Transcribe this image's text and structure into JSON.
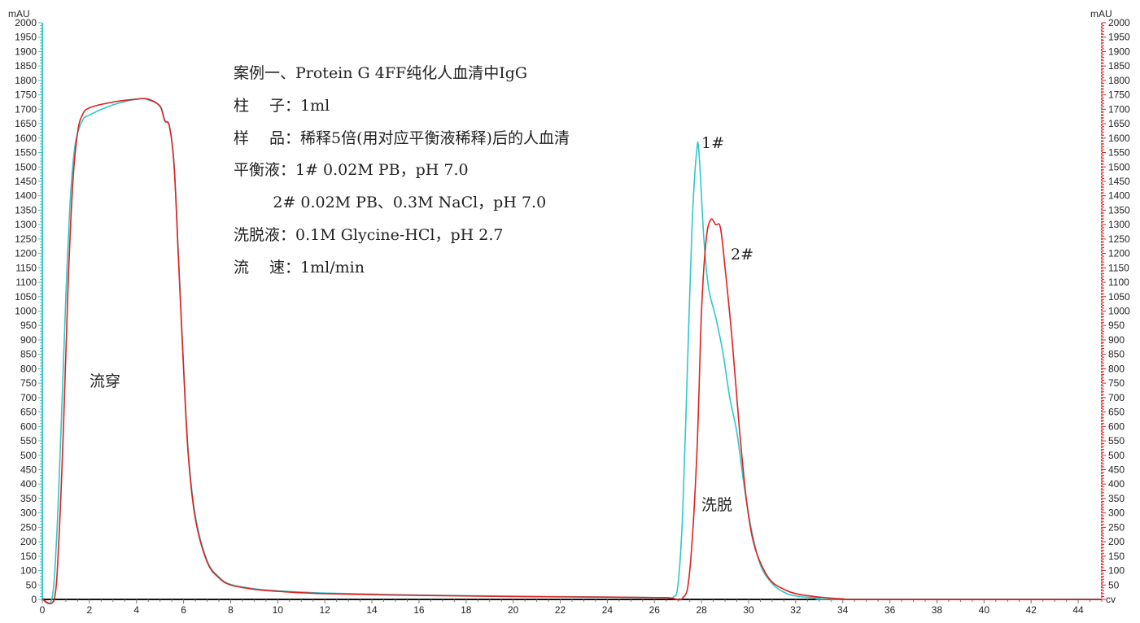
{
  "chart_data": {
    "type": "line",
    "xlabel": "cv",
    "ylabel_left": "mAU",
    "ylabel_right": "mAU",
    "xlim": [
      0,
      45
    ],
    "ylim": [
      0,
      2000
    ],
    "x_ticks": [
      0,
      2,
      4,
      6,
      8,
      10,
      12,
      14,
      16,
      18,
      20,
      22,
      24,
      26,
      28,
      30,
      32,
      34,
      36,
      38,
      40,
      42,
      44
    ],
    "y_ticks_left": [
      0,
      50,
      100,
      150,
      200,
      250,
      300,
      350,
      400,
      450,
      500,
      550,
      600,
      650,
      700,
      750,
      800,
      850,
      900,
      950,
      1000,
      1050,
      1100,
      1150,
      1200,
      1250,
      1300,
      1350,
      1400,
      1450,
      1500,
      1550,
      1600,
      1650,
      1700,
      1750,
      1800,
      1850,
      1900,
      1950,
      2000
    ],
    "y_ticks_right": [
      50,
      100,
      150,
      200,
      250,
      300,
      350,
      400,
      450,
      500,
      550,
      600,
      650,
      700,
      750,
      800,
      850,
      900,
      950,
      1000,
      1050,
      1100,
      1150,
      1200,
      1250,
      1300,
      1350,
      1400,
      1450,
      1500,
      1550,
      1600,
      1650,
      1700,
      1750,
      1800,
      1850,
      1900,
      1950,
      2000
    ],
    "grid": false,
    "left_axis_color": "#3cc8c8",
    "right_axis_color": "#e02020",
    "series": [
      {
        "name": "1#",
        "color": "#2ec8c8",
        "points": [
          [
            0,
            0
          ],
          [
            0.4,
            0
          ],
          [
            0.6,
            200
          ],
          [
            0.8,
            600
          ],
          [
            1.0,
            1050
          ],
          [
            1.2,
            1400
          ],
          [
            1.4,
            1580
          ],
          [
            1.7,
            1660
          ],
          [
            2.0,
            1680
          ],
          [
            3.0,
            1715
          ],
          [
            4.0,
            1735
          ],
          [
            4.4,
            1735
          ],
          [
            5.0,
            1712
          ],
          [
            5.2,
            1662
          ],
          [
            5.4,
            1642
          ],
          [
            5.6,
            1505
          ],
          [
            5.8,
            1160
          ],
          [
            6.0,
            810
          ],
          [
            6.2,
            510
          ],
          [
            6.5,
            290
          ],
          [
            7.0,
            135
          ],
          [
            7.5,
            78
          ],
          [
            8.0,
            52
          ],
          [
            9.0,
            37
          ],
          [
            10,
            30
          ],
          [
            12,
            22
          ],
          [
            16,
            15
          ],
          [
            20,
            11
          ],
          [
            24,
            8
          ],
          [
            26.5,
            6
          ],
          [
            26.8,
            8
          ],
          [
            27.0,
            50
          ],
          [
            27.2,
            300
          ],
          [
            27.4,
            800
          ],
          [
            27.6,
            1300
          ],
          [
            27.8,
            1560
          ],
          [
            27.9,
            1540
          ],
          [
            28.1,
            1250
          ],
          [
            28.3,
            1080
          ],
          [
            28.6,
            980
          ],
          [
            28.9,
            860
          ],
          [
            29.2,
            700
          ],
          [
            29.5,
            580
          ],
          [
            29.8,
            400
          ],
          [
            30.1,
            250
          ],
          [
            30.5,
            120
          ],
          [
            31.0,
            55
          ],
          [
            31.5,
            25
          ],
          [
            32,
            12
          ],
          [
            33,
            4
          ],
          [
            34,
            0
          ],
          [
            45,
            0
          ]
        ]
      },
      {
        "name": "2#",
        "color": "#e02020",
        "points": [
          [
            0,
            0
          ],
          [
            0.5,
            0
          ],
          [
            0.7,
            200
          ],
          [
            0.9,
            600
          ],
          [
            1.1,
            1100
          ],
          [
            1.3,
            1450
          ],
          [
            1.5,
            1620
          ],
          [
            1.7,
            1680
          ],
          [
            2.0,
            1705
          ],
          [
            3.0,
            1725
          ],
          [
            4.0,
            1735
          ],
          [
            4.5,
            1735
          ],
          [
            5.0,
            1710
          ],
          [
            5.2,
            1660
          ],
          [
            5.4,
            1640
          ],
          [
            5.6,
            1500
          ],
          [
            5.8,
            1150
          ],
          [
            6.0,
            800
          ],
          [
            6.2,
            500
          ],
          [
            6.5,
            280
          ],
          [
            7.0,
            130
          ],
          [
            7.5,
            75
          ],
          [
            8.0,
            50
          ],
          [
            9.0,
            35
          ],
          [
            10,
            28
          ],
          [
            12,
            20
          ],
          [
            16,
            14
          ],
          [
            20,
            10
          ],
          [
            24,
            8
          ],
          [
            26.5,
            6
          ],
          [
            27.2,
            5
          ],
          [
            27.5,
            100
          ],
          [
            27.8,
            500
          ],
          [
            28.0,
            1000
          ],
          [
            28.2,
            1250
          ],
          [
            28.4,
            1318
          ],
          [
            28.6,
            1300
          ],
          [
            28.8,
            1290
          ],
          [
            29.0,
            1150
          ],
          [
            29.3,
            900
          ],
          [
            29.6,
            600
          ],
          [
            29.9,
            350
          ],
          [
            30.2,
            200
          ],
          [
            30.6,
            110
          ],
          [
            31.0,
            60
          ],
          [
            31.5,
            35
          ],
          [
            32,
            20
          ],
          [
            33,
            8
          ],
          [
            34,
            2
          ],
          [
            35,
            0
          ],
          [
            45,
            0
          ]
        ]
      }
    ],
    "annotations": {
      "flowthrough": "流穿",
      "elution": "洗脱",
      "peak1": "1#",
      "peak2": "2#"
    },
    "notes": [
      "案例一、Protein G 4FF纯化人血清中IgG",
      "柱　 子：1ml",
      "样　 品：稀释5倍(用对应平衡液稀释)后的人血清",
      "平衡液：1# 0.02M PB，pH 7.0",
      "        2# 0.02M PB、0.3M NaCl，pH 7.0",
      "洗脱液：0.1M Glycine-HCl，pH 2.7",
      "流　 速：1ml/min"
    ]
  }
}
